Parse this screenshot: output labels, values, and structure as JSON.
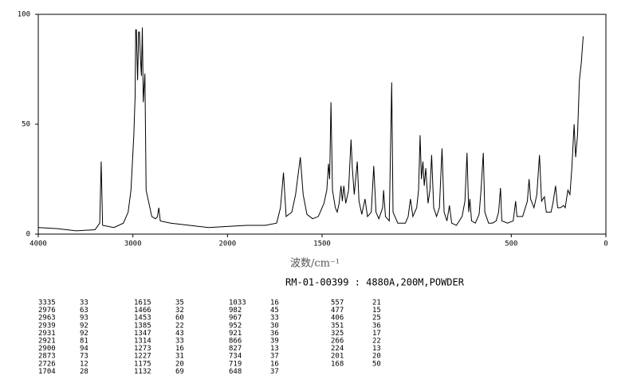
{
  "chart_data": {
    "type": "line",
    "x_label": "波数/cm⁻¹",
    "subtitle": "RM-01-00399 : 4880A,200M,POWDER",
    "xlim": [
      4000,
      0
    ],
    "x_scale_break": 2000,
    "xticks": [
      4000,
      3000,
      2000,
      1500,
      500,
      0
    ],
    "ylim": [
      0,
      100
    ],
    "yticks": [
      0,
      50,
      100
    ],
    "color": "#000000",
    "x": [
      4000,
      3800,
      3600,
      3400,
      3350,
      3335,
      3320,
      3200,
      3100,
      3050,
      3020,
      2990,
      2976,
      2970,
      2963,
      2950,
      2939,
      2931,
      2921,
      2910,
      2900,
      2890,
      2873,
      2860,
      2800,
      2760,
      2740,
      2726,
      2710,
      2600,
      2400,
      2200,
      2000,
      1900,
      1800,
      1740,
      1720,
      1704,
      1690,
      1660,
      1640,
      1615,
      1600,
      1580,
      1550,
      1520,
      1490,
      1475,
      1466,
      1460,
      1453,
      1445,
      1430,
      1420,
      1410,
      1400,
      1393,
      1385,
      1375,
      1360,
      1347,
      1340,
      1330,
      1314,
      1305,
      1290,
      1273,
      1260,
      1240,
      1227,
      1215,
      1200,
      1180,
      1175,
      1165,
      1145,
      1132,
      1125,
      1100,
      1060,
      1045,
      1033,
      1020,
      1000,
      990,
      982,
      975,
      967,
      960,
      952,
      940,
      930,
      921,
      910,
      895,
      880,
      866,
      855,
      840,
      827,
      815,
      790,
      760,
      745,
      734,
      725,
      719,
      710,
      690,
      670,
      660,
      648,
      640,
      620,
      600,
      580,
      567,
      557,
      550,
      520,
      490,
      477,
      470,
      440,
      415,
      406,
      398,
      380,
      365,
      351,
      340,
      325,
      315,
      290,
      280,
      266,
      255,
      240,
      224,
      215,
      201,
      190,
      180,
      168,
      160,
      150,
      140,
      130,
      120
    ],
    "values": [
      3,
      2.5,
      1.5,
      2,
      5,
      33,
      4,
      3,
      5,
      10,
      20,
      45,
      63,
      93,
      93,
      70,
      92,
      92,
      81,
      72,
      94,
      60,
      73,
      20,
      8,
      7,
      8,
      12,
      6,
      5,
      4,
      3,
      3.5,
      4,
      4,
      5,
      12,
      28,
      8,
      10,
      18,
      35,
      18,
      9,
      7,
      8,
      14,
      20,
      32,
      25,
      60,
      20,
      12,
      10,
      14,
      22,
      15,
      22,
      14,
      20,
      43,
      30,
      18,
      33,
      15,
      9,
      16,
      8,
      10,
      31,
      10,
      7,
      12,
      20,
      8,
      6,
      69,
      10,
      5,
      5,
      8,
      16,
      8,
      12,
      20,
      45,
      25,
      33,
      22,
      30,
      14,
      20,
      36,
      12,
      8,
      12,
      39,
      10,
      6,
      13,
      5,
      4,
      8,
      15,
      37,
      10,
      16,
      6,
      5,
      9,
      20,
      37,
      10,
      5,
      5,
      6,
      10,
      21,
      6,
      5,
      6,
      15,
      8,
      8,
      15,
      25,
      16,
      12,
      18,
      36,
      15,
      17,
      10,
      10,
      14,
      22,
      12,
      12,
      13,
      12,
      20,
      18,
      30,
      50,
      35,
      45,
      70,
      78,
      90
    ],
    "peaks": [
      {
        "wavenumber": [
          3335,
          2976,
          2963,
          2939,
          2931,
          2921,
          2900,
          2873,
          2726,
          1704
        ],
        "intensity": [
          33,
          63,
          93,
          92,
          92,
          81,
          94,
          73,
          12,
          28
        ]
      },
      {
        "wavenumber": [
          1615,
          1466,
          1453,
          1385,
          1347,
          1314,
          1273,
          1227,
          1175,
          1132
        ],
        "intensity": [
          35,
          32,
          60,
          22,
          43,
          33,
          16,
          31,
          20,
          69
        ]
      },
      {
        "wavenumber": [
          1033,
          982,
          967,
          952,
          921,
          866,
          827,
          734,
          719,
          648
        ],
        "intensity": [
          16,
          45,
          33,
          30,
          36,
          39,
          13,
          37,
          16,
          37
        ]
      },
      {
        "wavenumber": [
          557,
          477,
          406,
          351,
          325,
          266,
          224,
          201,
          168
        ],
        "intensity": [
          21,
          15,
          25,
          36,
          17,
          22,
          13,
          20,
          50
        ]
      }
    ]
  }
}
